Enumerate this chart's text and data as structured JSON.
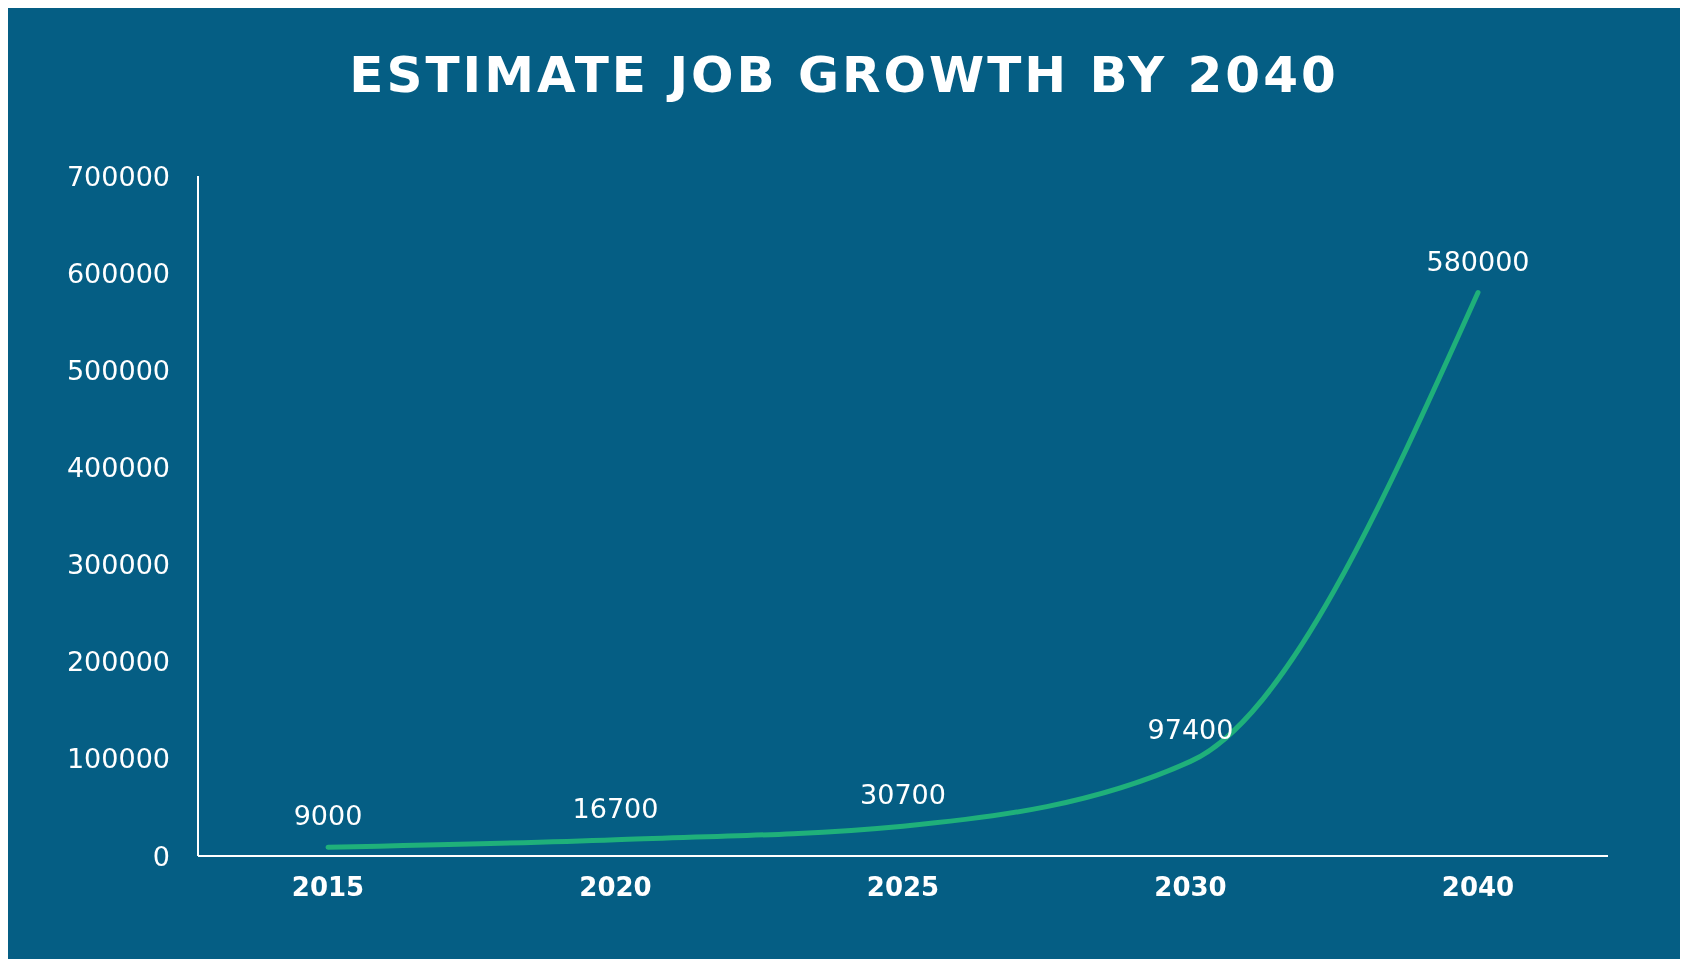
{
  "chart_data": {
    "type": "line",
    "title": "ESTIMATE JOB GROWTH BY 2040",
    "categories": [
      "2015",
      "2020",
      "2025",
      "2030",
      "2040"
    ],
    "series": [
      {
        "color": "#1fb07a",
        "values": [
          9000,
          16700,
          30700,
          97400,
          580000
        ]
      }
    ],
    "ylim": [
      0,
      700000
    ],
    "yticks": [
      0,
      100000,
      200000,
      300000,
      400000,
      500000,
      600000,
      700000
    ],
    "data_labels": true,
    "grid": false,
    "legend": false,
    "marker": "none",
    "line_style": "solid"
  }
}
